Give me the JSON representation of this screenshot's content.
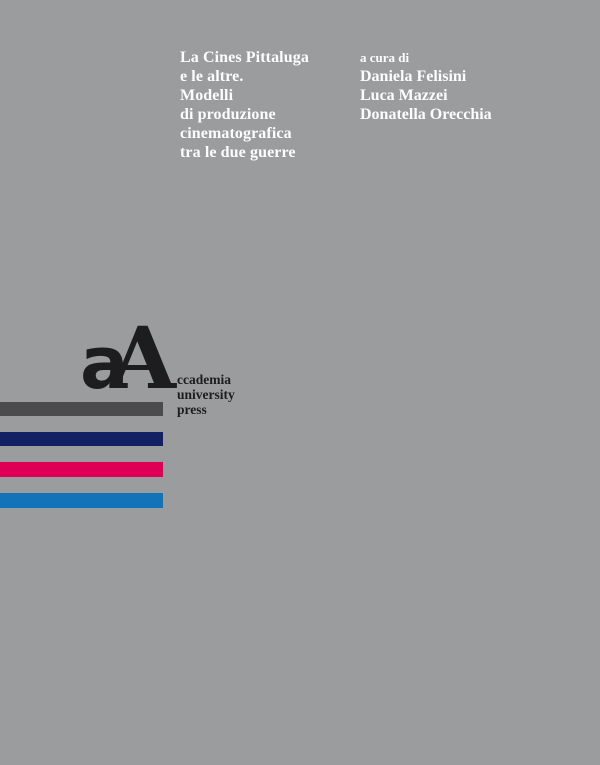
{
  "cover": {
    "background_color": "#9b9c9e",
    "title_color": "#fdfdfd",
    "logo_color": "#1d1d1f",
    "title_lines": [
      "La Cines Pittaluga",
      "e le altre.",
      "Modelli",
      "di produzione",
      "cinematografica",
      "tra le due guerre"
    ],
    "editors": {
      "label": "a cura di",
      "names": [
        "Daniela Felisini",
        "Luca Mazzei",
        "Donatella Orecchia"
      ]
    },
    "publisher": {
      "mark_lowercase": "a",
      "mark_uppercase": "A",
      "name_lines": [
        "ccademia",
        "university",
        "press"
      ]
    },
    "stripes": [
      {
        "name": "dark-gray-stripe",
        "color": "#4b4b4e"
      },
      {
        "name": "navy-stripe",
        "color": "#122163"
      },
      {
        "name": "magenta-stripe",
        "color": "#df0056"
      },
      {
        "name": "blue-stripe",
        "color": "#1273b8"
      }
    ]
  }
}
